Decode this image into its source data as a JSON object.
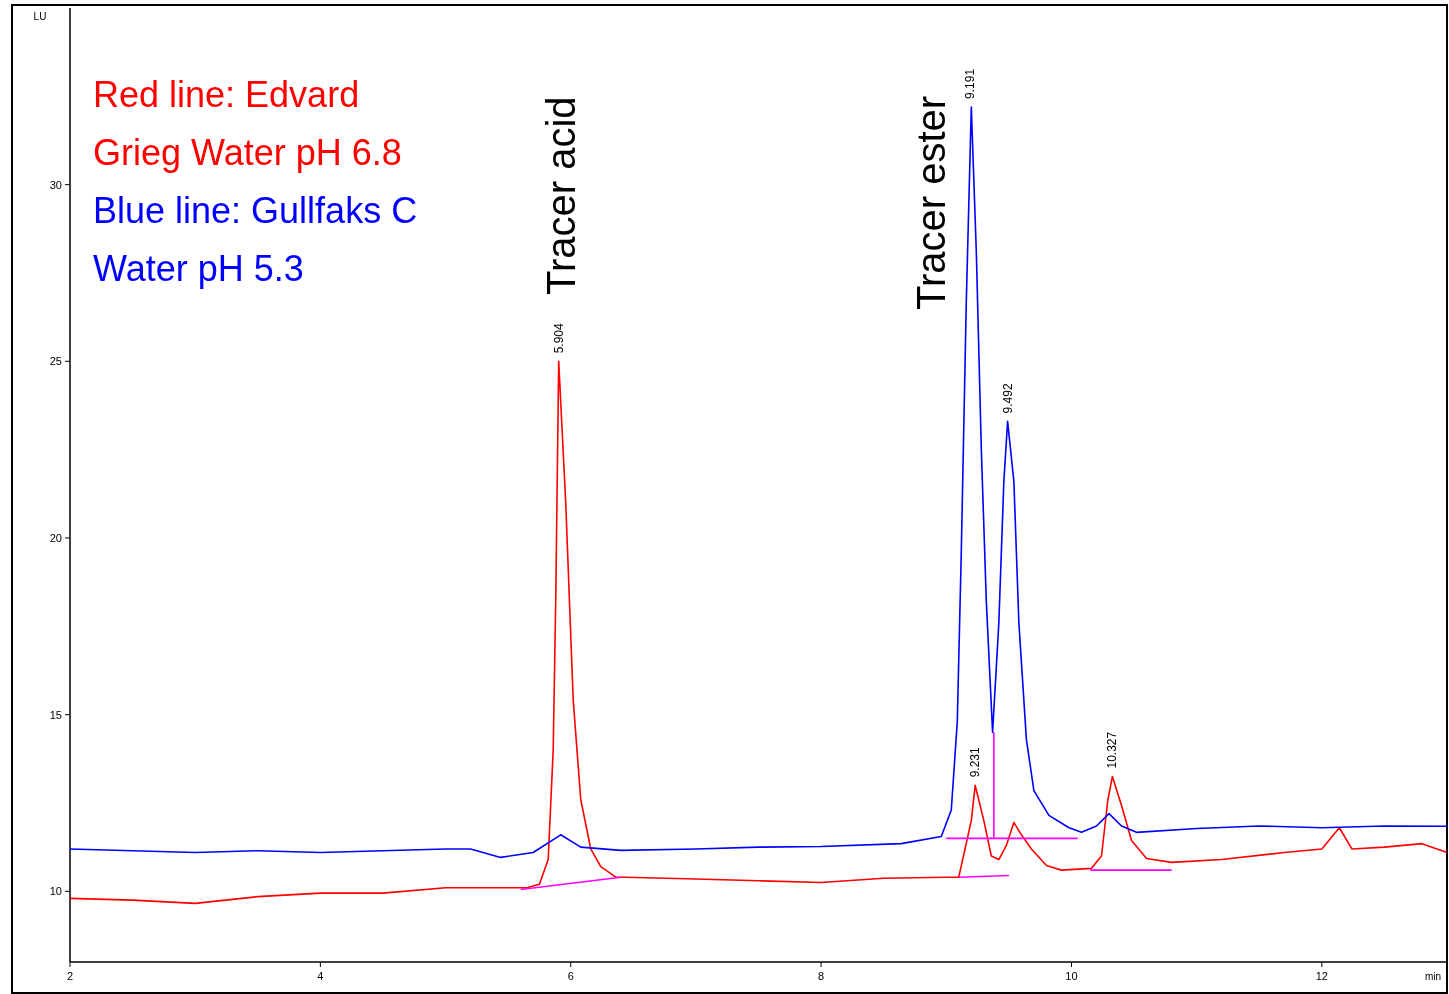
{
  "chart_data": {
    "type": "line",
    "xlabel": "min",
    "ylabel": "LU",
    "xlim": [
      2,
      13
    ],
    "ylim": [
      8,
      35
    ],
    "xticks": [
      2,
      4,
      6,
      8,
      10,
      12
    ],
    "yticks": [
      10,
      15,
      20,
      25,
      30
    ],
    "grid": false,
    "legend": "top left",
    "marker": "none",
    "line_style": "solid",
    "series": [
      {
        "name": "Red line: Edvard Grieg Water pH 6.8",
        "color": "#ff0000",
        "x": [
          2,
          2.5,
          3,
          3.5,
          4,
          4.5,
          5,
          5.5,
          5.65,
          5.75,
          5.82,
          5.86,
          5.88,
          5.904,
          5.96,
          6.02,
          6.08,
          6.16,
          6.24,
          6.36,
          6.44,
          7,
          7.5,
          8,
          8.5,
          9,
          9.1,
          9.2,
          9.231,
          9.3,
          9.36,
          9.42,
          9.48,
          9.54,
          9.6,
          9.68,
          9.8,
          9.92,
          10.16,
          10.24,
          10.29,
          10.327,
          10.4,
          10.48,
          10.6,
          10.8,
          11.2,
          11.7,
          12,
          12.14,
          12.24,
          12.5,
          12.8,
          13
        ],
        "values": [
          9.8,
          9.75,
          9.66,
          9.85,
          9.95,
          9.95,
          10.1,
          10.1,
          10.1,
          10.2,
          10.9,
          14,
          18.2,
          25.0,
          21.0,
          15.4,
          12.6,
          11.2,
          10.7,
          10.4,
          10.4,
          10.35,
          10.3,
          10.25,
          10.37,
          10.4,
          10.4,
          12.0,
          13.0,
          12.0,
          11.0,
          10.9,
          11.3,
          11.95,
          11.6,
          11.2,
          10.73,
          10.6,
          10.65,
          11.0,
          12.57,
          13.25,
          12.43,
          11.44,
          10.93,
          10.82,
          10.9,
          11.1,
          11.2,
          11.8,
          11.2,
          11.25,
          11.35,
          11.1
        ]
      },
      {
        "name": "Blue line: Gullfaks C Water pH 5.3",
        "color": "#0000ff",
        "x": [
          2,
          2.5,
          3,
          3.5,
          4,
          4.5,
          5,
          5.2,
          5.44,
          5.7,
          5.92,
          6.08,
          6.4,
          7,
          7.5,
          8,
          8.64,
          8.96,
          9.04,
          9.088,
          9.12,
          9.16,
          9.2,
          9.24,
          9.28,
          9.32,
          9.37,
          9.42,
          9.46,
          9.49,
          9.54,
          9.58,
          9.64,
          9.7,
          9.82,
          9.98,
          10.08,
          10.2,
          10.3,
          10.4,
          10.52,
          11,
          11.5,
          12,
          12.5,
          13
        ],
        "values": [
          11.2,
          11.15,
          11.1,
          11.15,
          11.1,
          11.15,
          11.2,
          11.2,
          10.96,
          11.1,
          11.6,
          11.25,
          11.16,
          11.2,
          11.25,
          11.27,
          11.35,
          11.55,
          12.3,
          14.8,
          19.6,
          26.7,
          32.2,
          28.1,
          22.5,
          18.2,
          14.5,
          17.6,
          21.6,
          23.3,
          21.6,
          17.6,
          14.3,
          12.85,
          12.15,
          11.8,
          11.67,
          11.85,
          12.2,
          11.85,
          11.67,
          11.78,
          11.85,
          11.8,
          11.85,
          11.84
        ]
      },
      {
        "color": "#ff00ff",
        "x": [
          5.6,
          6.4
        ],
        "values": [
          10.05,
          10.4
        ]
      },
      {
        "color": "#ff00ff",
        "x": [
          9.0,
          10.05
        ],
        "values": [
          11.5,
          11.5
        ]
      },
      {
        "color": "#ff00ff",
        "x": [
          9.38,
          9.38
        ],
        "values": [
          11.5,
          14.5
        ]
      },
      {
        "color": "#ff00ff",
        "x": [
          9.1,
          9.5
        ],
        "values": [
          10.4,
          10.45
        ]
      },
      {
        "color": "#ff00ff",
        "x": [
          10.15,
          10.8
        ],
        "values": [
          10.6,
          10.6
        ]
      }
    ],
    "annotations": [
      "Tracer acid",
      "Tracer ester",
      {
        "text": "5.904",
        "x": 5.904,
        "y": 25.0
      },
      {
        "text": "9.191",
        "x": 9.191,
        "y": 32.2
      },
      {
        "text": "9.492",
        "x": 9.492,
        "y": 23.3
      },
      {
        "text": "9.231",
        "x": 9.231,
        "y": 13.0
      },
      {
        "text": "10.327",
        "x": 10.327,
        "y": 13.25
      }
    ]
  }
}
